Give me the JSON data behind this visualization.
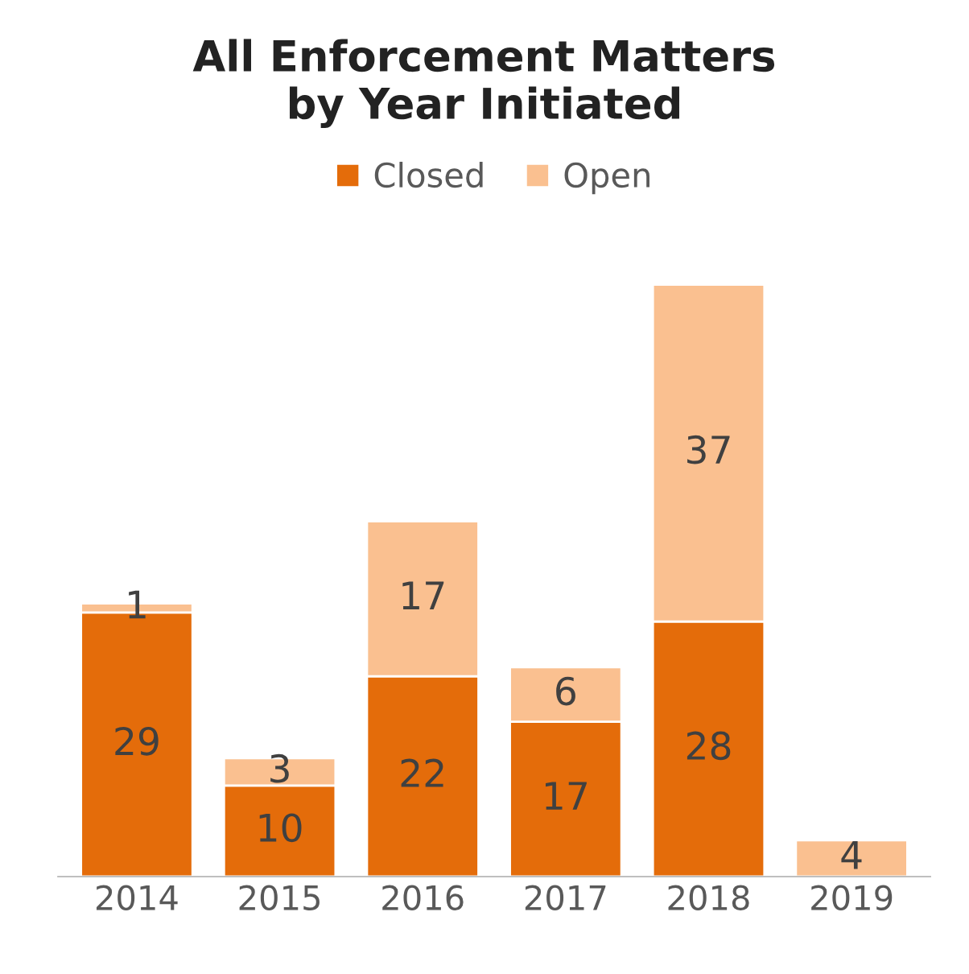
{
  "chart_data": {
    "type": "bar",
    "title": "All Enforcement Matters\nby Year Initiated",
    "categories": [
      "2014",
      "2015",
      "2016",
      "2017",
      "2018",
      "2019"
    ],
    "stacked": true,
    "legend": "top",
    "grid": false,
    "series": [
      {
        "name": "Closed",
        "color": "#e46c0a",
        "values": [
          29,
          10,
          22,
          17,
          28,
          0
        ],
        "value_labels": [
          "29",
          "10",
          "22",
          "17",
          "28",
          null
        ]
      },
      {
        "name": "Open",
        "color": "#fac090",
        "values": [
          1,
          3,
          17,
          6,
          37,
          4
        ],
        "value_labels": [
          "1",
          "3",
          "17",
          "6",
          "37",
          "4"
        ]
      }
    ]
  }
}
